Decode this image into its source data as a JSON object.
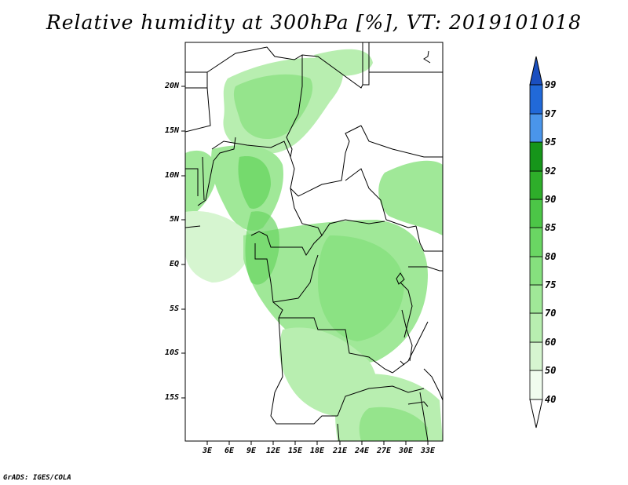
{
  "title": "Relative humidity at 300hPa [%], VT: 2019101018",
  "credit": "GrADS: IGES/COLA",
  "lat_labels": [
    "20N",
    "15N",
    "10N",
    "5N",
    "EQ",
    "5S",
    "10S",
    "15S"
  ],
  "lon_labels": [
    "3E",
    "6E",
    "9E",
    "12E",
    "15E",
    "18E",
    "21E",
    "24E",
    "27E",
    "30E",
    "33E"
  ],
  "colorbar": {
    "labels": [
      "40",
      "50",
      "60",
      "70",
      "75",
      "80",
      "85",
      "90",
      "92",
      "95",
      "97",
      "99"
    ],
    "colors": [
      "#f0fcee",
      "#d6f5d0",
      "#b8eeb0",
      "#a0e898",
      "#86e07e",
      "#6ad663",
      "#4cc647",
      "#2eae2a",
      "#16951a",
      "#4a95ea",
      "#2169d8",
      "#1a4fc0"
    ]
  }
}
